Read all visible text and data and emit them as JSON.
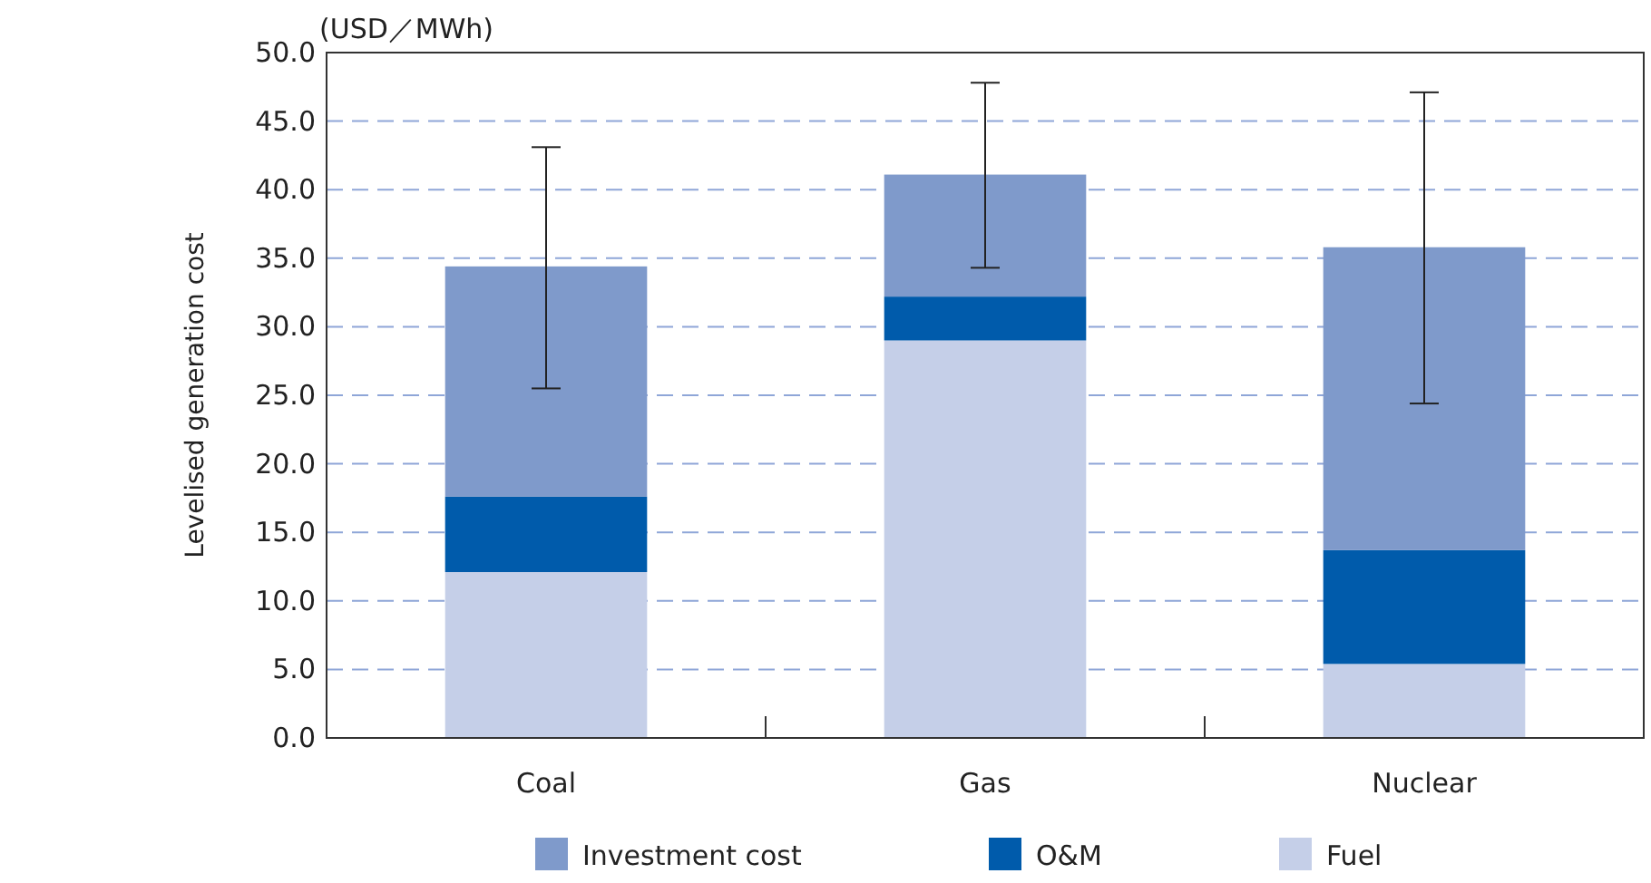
{
  "chart_data": {
    "type": "bar",
    "stacked": true,
    "ylabel": "Levelised generation cost",
    "annotations": [
      "(USD／MWh)"
    ],
    "categories": [
      "Coal",
      "Gas",
      "Nuclear"
    ],
    "series": [
      {
        "name": "Fuel",
        "color": "#c5cfe8",
        "values": [
          12.1,
          29.0,
          5.4
        ]
      },
      {
        "name": "O&M",
        "color": "#005bab",
        "values": [
          5.5,
          3.2,
          8.3
        ]
      },
      {
        "name": "Investment cost",
        "color": "#7f9acb",
        "values": [
          16.8,
          8.9,
          22.1
        ],
        "errors": [
          [
            25.5,
            43.1
          ],
          [
            34.3,
            47.8
          ],
          [
            24.4,
            47.1
          ]
        ]
      }
    ],
    "ylim": [
      0,
      50
    ],
    "yticks": [
      {
        "value": 0,
        "label": "0.0"
      },
      {
        "value": 5,
        "label": "5.0"
      },
      {
        "value": 10,
        "label": "10.0"
      },
      {
        "value": 15,
        "label": "15.0"
      },
      {
        "value": 20,
        "label": "20.0"
      },
      {
        "value": 25,
        "label": "25.0"
      },
      {
        "value": 30,
        "label": "30.0"
      },
      {
        "value": 35,
        "label": "35.0"
      },
      {
        "value": 40,
        "label": "40.0"
      },
      {
        "value": 45,
        "label": "45.0"
      },
      {
        "value": 50,
        "label": "50.0"
      }
    ],
    "grid": "y",
    "legend": "bottom"
  }
}
